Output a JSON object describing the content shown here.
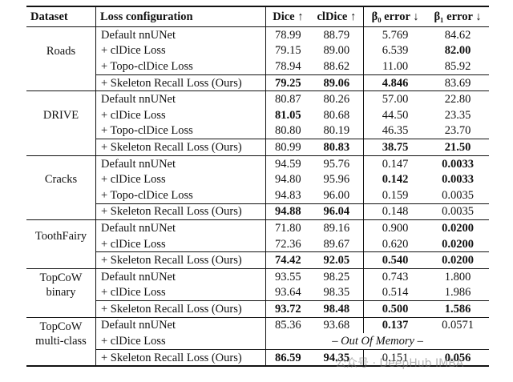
{
  "header": [
    "Dataset",
    "Loss configuration",
    "Dice ↑",
    "clDice ↑",
    "β₀ error ↓",
    "β₁ error ↓"
  ],
  "groups": [
    {
      "dataset": "Roads",
      "rows": [
        {
          "loss": "Default nnUNet",
          "values": [
            "78.99",
            "88.79",
            "5.769",
            "84.62"
          ]
        },
        {
          "loss": "+ clDice Loss",
          "values": [
            "79.15",
            "89.00",
            "6.539",
            "82.00"
          ]
        },
        {
          "loss": "+ Topo-clDice Loss",
          "values": [
            "78.94",
            "88.62",
            "11.00",
            "85.92"
          ]
        },
        {
          "loss": "+ Skeleton Recall Loss (Ours)",
          "values": [
            "79.25",
            "89.06",
            "4.846",
            "83.69"
          ]
        }
      ]
    },
    {
      "dataset": "DRIVE",
      "rows": [
        {
          "loss": "Default nnUNet",
          "values": [
            "80.87",
            "80.26",
            "57.00",
            "22.80"
          ]
        },
        {
          "loss": "+ clDice Loss",
          "values": [
            "81.05",
            "80.68",
            "44.50",
            "23.35"
          ]
        },
        {
          "loss": "+ Topo-clDice Loss",
          "values": [
            "80.80",
            "80.19",
            "46.35",
            "23.70"
          ]
        },
        {
          "loss": "+ Skeleton Recall Loss (Ours)",
          "values": [
            "80.99",
            "80.83",
            "38.75",
            "21.50"
          ]
        }
      ]
    },
    {
      "dataset": "Cracks",
      "rows": [
        {
          "loss": "Default nnUNet",
          "values": [
            "94.59",
            "95.76",
            "0.147",
            "0.0033"
          ]
        },
        {
          "loss": "+ clDice Loss",
          "values": [
            "94.80",
            "95.96",
            "0.142",
            "0.0033"
          ]
        },
        {
          "loss": "+ Topo-clDice Loss",
          "values": [
            "94.83",
            "96.00",
            "0.159",
            "0.0035"
          ]
        },
        {
          "loss": "+ Skeleton Recall Loss (Ours)",
          "values": [
            "94.88",
            "96.04",
            "0.148",
            "0.0035"
          ]
        }
      ]
    },
    {
      "dataset": "ToothFairy",
      "rows": [
        {
          "loss": "Default nnUNet",
          "values": [
            "71.80",
            "89.16",
            "0.900",
            "0.0200"
          ]
        },
        {
          "loss": "+ clDice Loss",
          "values": [
            "72.36",
            "89.67",
            "0.620",
            "0.0200"
          ]
        },
        {
          "loss": "+ Skeleton Recall Loss (Ours)",
          "values": [
            "74.42",
            "92.05",
            "0.540",
            "0.0200"
          ]
        }
      ]
    },
    {
      "dataset": "TopCoW binary",
      "rows": [
        {
          "loss": "Default nnUNet",
          "values": [
            "93.55",
            "98.25",
            "0.743",
            "1.800"
          ]
        },
        {
          "loss": "+ clDice Loss",
          "values": [
            "93.64",
            "98.35",
            "0.514",
            "1.986"
          ]
        },
        {
          "loss": "+ Skeleton Recall Loss (Ours)",
          "values": [
            "93.72",
            "98.48",
            "0.500",
            "1.586"
          ]
        }
      ]
    },
    {
      "dataset": "TopCoW multi-class",
      "rows": [
        {
          "loss": "Default nnUNet",
          "values": [
            "85.36",
            "93.68",
            "0.137",
            "0.0571"
          ]
        },
        {
          "loss": "+ clDice Loss",
          "note": "– Out Of Memory –"
        },
        {
          "loss": "+ Skeleton Recall Loss (Ours)",
          "values": [
            "86.59",
            "94.35",
            "0.151",
            "0.056"
          ]
        }
      ]
    }
  ],
  "watermark": "公众号 · DeepHub IMBA"
}
